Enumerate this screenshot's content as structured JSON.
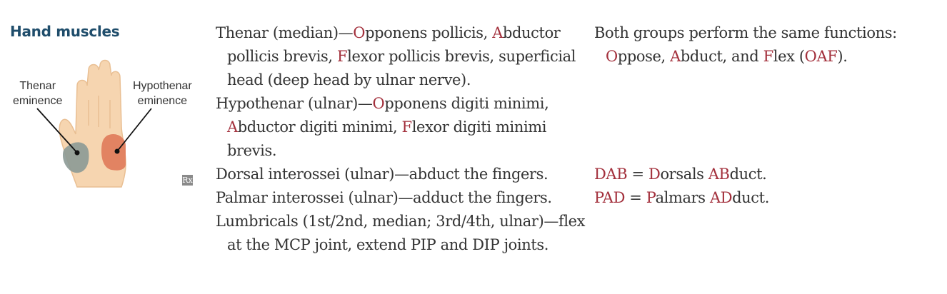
{
  "heading": "Hand muscles",
  "figure": {
    "thenar_label_1": "Thenar",
    "thenar_label_2": "eminence",
    "hypothenar_label_1": "Hypothenar",
    "hypothenar_label_2": "eminence",
    "rx_icon": "Rx"
  },
  "middle": {
    "thenar": {
      "a": "Thenar (median)—",
      "o": "O",
      "b": "pponens pollicis, ",
      "a2": "A",
      "c": "bductor pollicis brevis, ",
      "f": "F",
      "d": "lexor pollicis brevis, superficial head (deep head by ulnar nerve)."
    },
    "hypothenar": {
      "a": "Hypothenar (ulnar)—",
      "o": "O",
      "b": "pponens digiti minimi, ",
      "a2": "A",
      "c": "bductor digiti minimi, ",
      "f": "F",
      "d": "lexor digiti minimi brevis."
    },
    "dorsal": "Dorsal interossei (ulnar)—abduct the fingers.",
    "palmar": "Palmar interossei (ulnar)—adduct the fingers.",
    "lumbricals": "Lumbricals (1st/2nd, median; 3rd/4th, ulnar)—flex at the MCP joint, extend PIP and DIP joints."
  },
  "right": {
    "oaf": {
      "a": "Both groups perform the same functions: ",
      "o": "O",
      "b": "ppose, ",
      "a2": "A",
      "c": "bduct, and ",
      "f": "F",
      "d": "lex (",
      "oaf": "OAF",
      "e": ")."
    },
    "dab": {
      "abbr": "DAB",
      "eq": " = ",
      "d": "D",
      "mid": "orsals ",
      "ab": "AB",
      "end": "duct."
    },
    "pad": {
      "abbr": "PAD",
      "eq": " = ",
      "p": "P",
      "mid": "almars ",
      "ad": "AD",
      "end": "duct."
    }
  },
  "colors": {
    "heading": "#1f4d6b",
    "accent": "#a3303c",
    "thenar_region": "#8c9a96",
    "hypothenar_region": "#e07a5a",
    "skin": "#f6d5b0"
  }
}
